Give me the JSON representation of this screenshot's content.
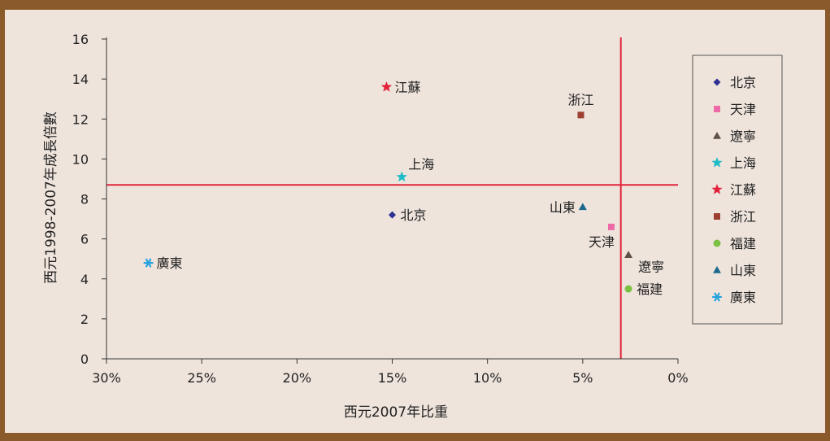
{
  "chart_data": {
    "type": "scatter",
    "title": "",
    "xlabel": "西元2007年比重",
    "ylabel": "西元1998-2007年成長倍數",
    "x_reversed": true,
    "xlim": [
      0,
      30
    ],
    "ylim": [
      0,
      16
    ],
    "x_ticks": [
      {
        "v": 30,
        "label": "30%"
      },
      {
        "v": 25,
        "label": "25%"
      },
      {
        "v": 20,
        "label": "20%"
      },
      {
        "v": 15,
        "label": "15%"
      },
      {
        "v": 10,
        "label": "10%"
      },
      {
        "v": 5,
        "label": "5%"
      },
      {
        "v": 0,
        "label": "0%"
      }
    ],
    "y_ticks": [
      {
        "v": 0,
        "label": "0"
      },
      {
        "v": 2,
        "label": "2"
      },
      {
        "v": 4,
        "label": "4"
      },
      {
        "v": 6,
        "label": "6"
      },
      {
        "v": 8,
        "label": "8"
      },
      {
        "v": 10,
        "label": "10"
      },
      {
        "v": 12,
        "label": "12"
      },
      {
        "v": 14,
        "label": "14"
      },
      {
        "v": 16,
        "label": "16"
      }
    ],
    "reference_lines": {
      "x": 3,
      "y": 8.7,
      "color": "#e2233c"
    },
    "grid": false,
    "legend_position": "right",
    "series": [
      {
        "name": "北京",
        "marker": "diamond",
        "color": "#2e3192",
        "x": 15.0,
        "y": 7.2,
        "label_pos": "right"
      },
      {
        "name": "天津",
        "marker": "square",
        "color": "#ee6aa7",
        "x": 3.5,
        "y": 6.6,
        "label_pos": "below-left"
      },
      {
        "name": "遼寧",
        "marker": "triangle",
        "color": "#5f5147",
        "x": 2.6,
        "y": 5.2,
        "label_pos": "below-right"
      },
      {
        "name": "上海",
        "marker": "star",
        "color": "#1fbcc7",
        "x": 14.5,
        "y": 9.1,
        "label_pos": "above-right"
      },
      {
        "name": "江蘇",
        "marker": "star",
        "color": "#e2233c",
        "x": 15.3,
        "y": 13.6,
        "label_pos": "right"
      },
      {
        "name": "浙江",
        "marker": "square",
        "color": "#9c3f31",
        "x": 5.1,
        "y": 12.2,
        "label_pos": "above"
      },
      {
        "name": "福建",
        "marker": "circle",
        "color": "#7ac143",
        "x": 2.6,
        "y": 3.5,
        "label_pos": "right"
      },
      {
        "name": "山東",
        "marker": "triangle",
        "color": "#1b6a8c",
        "x": 5.0,
        "y": 7.6,
        "label_pos": "left"
      },
      {
        "name": "廣東",
        "marker": "asterisk",
        "color": "#27a2dc",
        "x": 27.8,
        "y": 4.8,
        "label_pos": "right"
      }
    ]
  }
}
